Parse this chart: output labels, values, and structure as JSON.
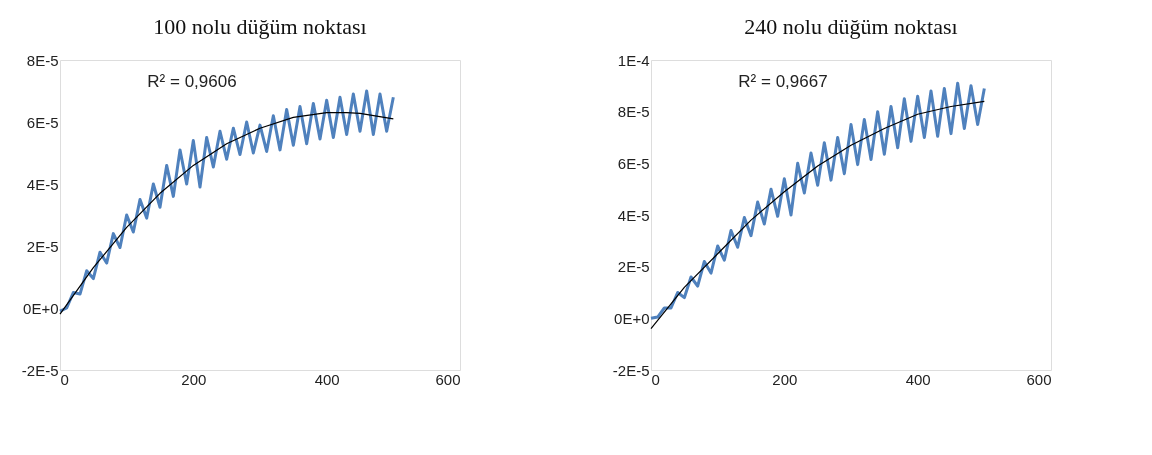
{
  "chart_data": [
    {
      "type": "line",
      "title": "100 nolu düğüm noktası",
      "annotations": [
        "R² = 0,9606"
      ],
      "xlim": [
        0,
        600
      ],
      "xticks": [
        0,
        200,
        400,
        600
      ],
      "ylim": [
        -2e-05,
        8e-05
      ],
      "yticks": [
        {
          "value": -2e-05,
          "label": "-2E-5"
        },
        {
          "value": 0,
          "label": "0E+0"
        },
        {
          "value": 2e-05,
          "label": "2E-5"
        },
        {
          "value": 4e-05,
          "label": "4E-5"
        },
        {
          "value": 6e-05,
          "label": "6E-5"
        },
        {
          "value": 8e-05,
          "label": "8E-5"
        }
      ],
      "grid": false,
      "series": [
        {
          "color": "#4f81bd",
          "x": [
            0,
            10,
            20,
            30,
            40,
            50,
            60,
            70,
            80,
            90,
            100,
            110,
            120,
            130,
            140,
            150,
            160,
            170,
            180,
            190,
            200,
            210,
            220,
            230,
            240,
            250,
            260,
            270,
            280,
            290,
            300,
            310,
            320,
            330,
            340,
            350,
            360,
            370,
            380,
            390,
            400,
            410,
            420,
            430,
            440,
            450,
            460,
            470,
            480,
            490,
            500
          ],
          "values": [
            -1e-06,
            0,
            5e-06,
            4.5e-06,
            1.2e-05,
            9.5e-06,
            1.8e-05,
            1.45e-05,
            2.4e-05,
            1.95e-05,
            3e-05,
            2.45e-05,
            3.5e-05,
            2.9e-05,
            4e-05,
            3.25e-05,
            4.6e-05,
            3.6e-05,
            5.1e-05,
            4e-05,
            5.4e-05,
            3.9e-05,
            5.5e-05,
            4.55e-05,
            5.7e-05,
            4.8e-05,
            5.8e-05,
            4.95e-05,
            6e-05,
            5e-05,
            5.9e-05,
            5.05e-05,
            6.2e-05,
            5.1e-05,
            6.4e-05,
            5.25e-05,
            6.5e-05,
            5.3e-05,
            6.6e-05,
            5.45e-05,
            6.7e-05,
            5.5e-05,
            6.8e-05,
            5.6e-05,
            6.9e-05,
            5.7e-05,
            7e-05,
            5.6e-05,
            6.9e-05,
            5.7e-05,
            6.8e-05
          ]
        },
        {
          "color": "#000000",
          "x": [
            0,
            50,
            100,
            150,
            200,
            250,
            300,
            350,
            400,
            430,
            450,
            500
          ],
          "values": [
            -2e-06,
            1.3e-05,
            2.6e-05,
            3.7e-05,
            4.6e-05,
            5.3e-05,
            5.8e-05,
            6.15e-05,
            6.3e-05,
            6.3e-05,
            6.28e-05,
            6.1e-05
          ]
        }
      ]
    },
    {
      "type": "line",
      "title": "240 nolu düğüm noktası",
      "annotations": [
        "R² = 0,9667"
      ],
      "xlim": [
        0,
        600
      ],
      "xticks": [
        0,
        200,
        400,
        600
      ],
      "ylim": [
        -2e-05,
        0.0001
      ],
      "yticks": [
        {
          "value": -2e-05,
          "label": "-2E-5"
        },
        {
          "value": 0,
          "label": "0E+0"
        },
        {
          "value": 2e-05,
          "label": "2E-5"
        },
        {
          "value": 4e-05,
          "label": "4E-5"
        },
        {
          "value": 6e-05,
          "label": "6E-5"
        },
        {
          "value": 8e-05,
          "label": "8E-5"
        },
        {
          "value": 0.0001,
          "label": "1E-4"
        }
      ],
      "grid": false,
      "series": [
        {
          "color": "#4f81bd",
          "x": [
            0,
            10,
            20,
            30,
            40,
            50,
            60,
            70,
            80,
            90,
            100,
            110,
            120,
            130,
            140,
            150,
            160,
            170,
            180,
            190,
            200,
            210,
            220,
            230,
            240,
            250,
            260,
            270,
            280,
            290,
            300,
            310,
            320,
            330,
            340,
            350,
            360,
            370,
            380,
            390,
            400,
            410,
            420,
            430,
            440,
            450,
            460,
            470,
            480,
            490,
            500
          ],
          "values": [
            0,
            5e-07,
            4e-06,
            4e-06,
            1e-05,
            8e-06,
            1.6e-05,
            1.25e-05,
            2.2e-05,
            1.75e-05,
            2.8e-05,
            2.25e-05,
            3.4e-05,
            2.75e-05,
            3.9e-05,
            3.2e-05,
            4.5e-05,
            3.65e-05,
            5e-05,
            3.95e-05,
            5.4e-05,
            4e-05,
            6e-05,
            4.85e-05,
            6.4e-05,
            5.15e-05,
            6.8e-05,
            5.35e-05,
            7e-05,
            5.6e-05,
            7.5e-05,
            5.95e-05,
            7.7e-05,
            6.15e-05,
            8e-05,
            6.35e-05,
            8.2e-05,
            6.6e-05,
            8.5e-05,
            6.85e-05,
            8.6e-05,
            7e-05,
            8.8e-05,
            7.05e-05,
            8.9e-05,
            7.15e-05,
            9.1e-05,
            7.35e-05,
            9e-05,
            7.5e-05,
            8.9e-05
          ]
        },
        {
          "color": "#000000",
          "x": [
            0,
            50,
            100,
            150,
            200,
            250,
            300,
            350,
            400,
            450,
            500
          ],
          "values": [
            -4e-06,
            1.2e-05,
            2.5e-05,
            3.8e-05,
            4.9e-05,
            5.9e-05,
            6.7e-05,
            7.35e-05,
            7.9e-05,
            8.2e-05,
            8.4e-05
          ]
        }
      ]
    }
  ]
}
